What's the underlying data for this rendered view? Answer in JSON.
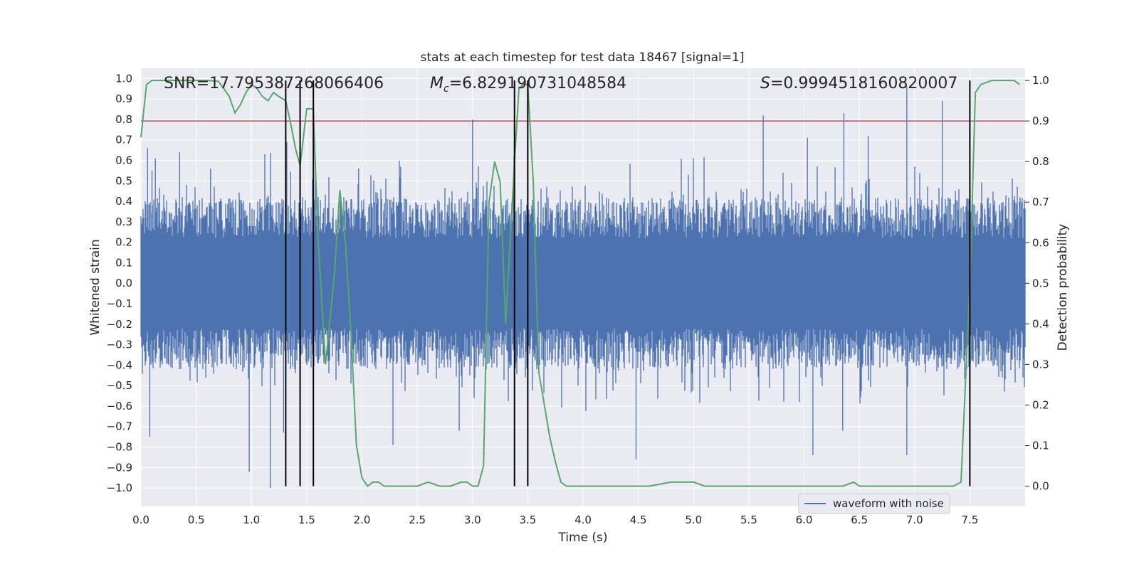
{
  "chart_data": {
    "type": "line",
    "title": "stats at each timestep for test data 18467 [signal=1]",
    "xlabel": "Time (s)",
    "ylabel": "Whitened strain",
    "y2label": "Detection probability",
    "xlim": [
      0.0,
      8.0
    ],
    "ylim": [
      -1.09,
      1.05
    ],
    "y2lim": [
      -0.05,
      1.03
    ],
    "x_ticks": [
      "0.0",
      "0.5",
      "1.0",
      "1.5",
      "2.0",
      "2.5",
      "3.0",
      "3.5",
      "4.0",
      "4.5",
      "5.0",
      "5.5",
      "6.0",
      "6.5",
      "7.0",
      "7.5"
    ],
    "y_ticks": [
      "−1.0",
      "−0.9",
      "−0.8",
      "−0.7",
      "−0.6",
      "−0.5",
      "−0.4",
      "−0.3",
      "−0.2",
      "−0.1",
      "0.0",
      "0.1",
      "0.2",
      "0.3",
      "0.4",
      "0.5",
      "0.6",
      "0.7",
      "0.8",
      "0.9",
      "1.0"
    ],
    "y2_ticks": [
      "0.0",
      "0.1",
      "0.2",
      "0.3",
      "0.4",
      "0.5",
      "0.6",
      "0.7",
      "0.8",
      "0.9",
      "1.0"
    ],
    "grid": true,
    "legend": {
      "placement": "lower-right",
      "entries": [
        "waveform with noise"
      ]
    },
    "annotations": {
      "snr": "SNR=17.795387268066406",
      "mc_symbol": "M",
      "mc_sub": "c",
      "mc_value": "=6.829190731048584",
      "s_symbol": "S",
      "s_value": "=0.9994518160820007"
    },
    "threshold": {
      "axis": "right",
      "value": 0.9,
      "color": "#c44e52"
    },
    "vertical_lines": [
      1.31,
      1.44,
      1.56,
      3.38,
      3.5,
      7.5
    ],
    "series": [
      {
        "name": "waveform with noise",
        "axis": "left",
        "color": "#4c72b0",
        "envelope": "noise whitened strain, typical amplitude ±0.4, peaks to ±1.0",
        "peaks_high": [
          [
            0.06,
            0.66
          ],
          [
            0.1,
            0.55
          ],
          [
            0.13,
            0.61
          ],
          [
            0.35,
            0.64
          ],
          [
            0.63,
            0.56
          ],
          [
            1.32,
            0.69
          ],
          [
            1.97,
            0.56
          ],
          [
            2.35,
            0.57
          ],
          [
            3.0,
            0.8
          ],
          [
            5.63,
            0.82
          ],
          [
            6.03,
            0.71
          ],
          [
            6.36,
            0.83
          ],
          [
            6.58,
            0.72
          ],
          [
            6.93,
            0.96
          ],
          [
            7.25,
            0.89
          ]
        ],
        "peaks_low": [
          [
            0.08,
            -0.75
          ],
          [
            0.98,
            -0.92
          ],
          [
            1.17,
            -1.0
          ],
          [
            1.29,
            -0.73
          ],
          [
            2.28,
            -0.79
          ],
          [
            2.88,
            -0.72
          ],
          [
            4.48,
            -0.86
          ],
          [
            6.08,
            -0.84
          ],
          [
            6.35,
            -0.72
          ],
          [
            6.93,
            -0.84
          ],
          [
            7.5,
            -0.8
          ]
        ]
      },
      {
        "name": "detection probability",
        "axis": "right",
        "color": "#55a868",
        "x": [
          0.0,
          0.05,
          0.1,
          0.15,
          0.2,
          0.3,
          0.4,
          0.5,
          0.6,
          0.7,
          0.75,
          0.8,
          0.85,
          0.9,
          0.95,
          1.0,
          1.05,
          1.1,
          1.15,
          1.2,
          1.25,
          1.31,
          1.35,
          1.4,
          1.44,
          1.5,
          1.56,
          1.6,
          1.67,
          1.75,
          1.8,
          1.85,
          1.9,
          1.95,
          2.0,
          2.05,
          2.1,
          2.15,
          2.2,
          2.3,
          2.4,
          2.5,
          2.6,
          2.7,
          2.8,
          2.9,
          2.95,
          3.0,
          3.05,
          3.1,
          3.15,
          3.2,
          3.25,
          3.3,
          3.35,
          3.38,
          3.42,
          3.46,
          3.5,
          3.55,
          3.6,
          3.65,
          3.7,
          3.75,
          3.8,
          3.85,
          3.9,
          4.0,
          4.2,
          4.4,
          4.6,
          4.8,
          4.9,
          5.0,
          5.1,
          5.2,
          5.4,
          5.6,
          5.8,
          6.0,
          6.2,
          6.35,
          6.45,
          6.5,
          6.6,
          6.8,
          7.0,
          7.2,
          7.35,
          7.42,
          7.5,
          7.55,
          7.6,
          7.7,
          7.8,
          7.9,
          7.95
        ],
        "y": [
          0.86,
          0.99,
          1.0,
          1.0,
          1.0,
          1.0,
          1.0,
          1.0,
          1.0,
          0.998,
          0.98,
          0.96,
          0.92,
          0.94,
          0.97,
          0.99,
          0.98,
          0.96,
          0.95,
          0.97,
          0.96,
          0.95,
          0.9,
          0.83,
          0.79,
          0.93,
          0.93,
          0.62,
          0.3,
          0.52,
          0.73,
          0.6,
          0.38,
          0.1,
          0.02,
          0.0,
          0.01,
          0.01,
          0.0,
          0.0,
          0.0,
          0.0,
          0.01,
          0.0,
          0.0,
          0.01,
          0.01,
          0.0,
          0.0,
          0.05,
          0.7,
          0.8,
          0.75,
          0.4,
          0.65,
          0.8,
          0.98,
          0.99,
          0.99,
          0.75,
          0.28,
          0.2,
          0.12,
          0.06,
          0.01,
          0.0,
          0.0,
          0.0,
          0.0,
          0.0,
          0.0,
          0.01,
          0.01,
          0.01,
          0.0,
          0.0,
          0.0,
          0.0,
          0.0,
          0.0,
          0.0,
          0.0,
          0.01,
          0.0,
          0.0,
          0.0,
          0.0,
          0.0,
          0.0,
          0.01,
          0.5,
          0.97,
          0.99,
          1.0,
          1.0,
          1.0,
          0.99
        ]
      }
    ]
  }
}
